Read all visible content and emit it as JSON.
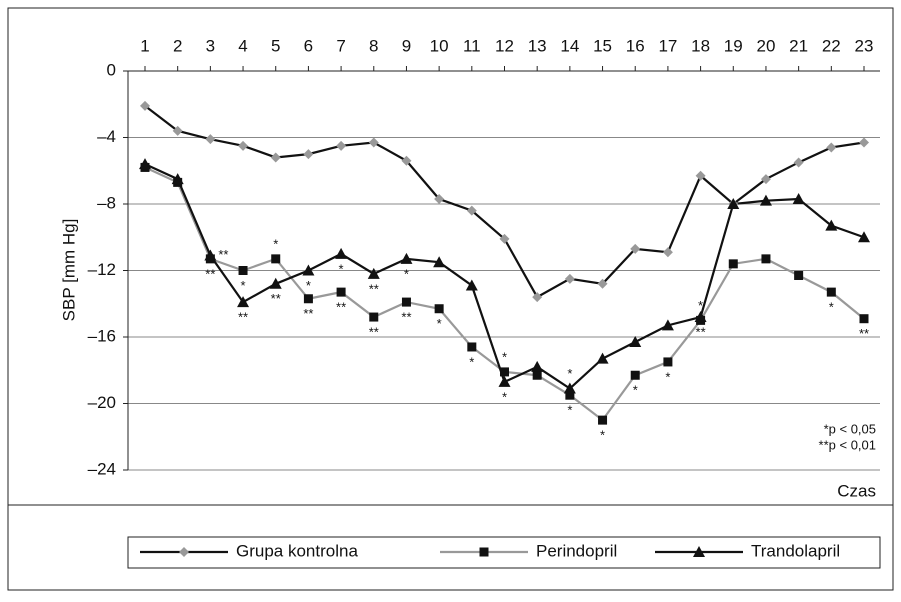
{
  "chart_data": {
    "type": "line",
    "ylabel": "SBP [mm Hg]",
    "xlabel": "Czas",
    "categories": [
      "1",
      "2",
      "3",
      "4",
      "5",
      "6",
      "7",
      "8",
      "9",
      "10",
      "11",
      "12",
      "13",
      "14",
      "15",
      "16",
      "17",
      "18",
      "19",
      "20",
      "21",
      "22",
      "23"
    ],
    "ylim": [
      -24,
      0
    ],
    "yticks": [
      {
        "value": -24,
        "label": "–24"
      },
      {
        "value": -20,
        "label": "–20"
      },
      {
        "value": -16,
        "label": "–16"
      },
      {
        "value": -12,
        "label": "–12"
      },
      {
        "value": -8,
        "label": "–8"
      },
      {
        "value": -4,
        "label": "–4"
      },
      0
    ],
    "grid": true,
    "legend": "bottom",
    "series": [
      {
        "name": "Grupa kontrolna",
        "color": "#111111",
        "marker": "diamond",
        "marker_color": "#999999",
        "values": [
          -2.1,
          -3.6,
          -4.1,
          -4.5,
          -5.2,
          -5.0,
          -4.5,
          -4.3,
          -5.4,
          -7.7,
          -8.4,
          -10.1,
          -13.6,
          -12.5,
          -12.8,
          -10.7,
          -10.9,
          -6.3,
          -8.0,
          -6.5,
          -5.5,
          -4.6,
          -4.3
        ]
      },
      {
        "name": "Perindopril",
        "color": "#999999",
        "marker": "square",
        "marker_color": "#111111",
        "values": [
          -5.8,
          -6.7,
          -11.3,
          -12.0,
          -11.3,
          -13.7,
          -13.3,
          -14.8,
          -13.9,
          -14.3,
          -16.6,
          -18.1,
          -18.3,
          -19.5,
          -21.0,
          -18.3,
          -17.5,
          -15.0,
          -11.6,
          -11.3,
          -12.3,
          -13.3,
          -14.9
        ]
      },
      {
        "name": "Trandolapril",
        "color": "#111111",
        "marker": "triangle",
        "marker_color": "#111111",
        "values": [
          -5.6,
          -6.5,
          -11.1,
          -13.9,
          -12.8,
          -12.0,
          -11.0,
          -12.2,
          -11.3,
          -11.5,
          -12.9,
          -18.7,
          -17.8,
          -19.1,
          -17.3,
          -16.3,
          -15.3,
          -14.8,
          -8.0,
          -7.8,
          -7.7,
          -9.3,
          -10.0
        ]
      }
    ],
    "annotations": [
      {
        "text": "**",
        "series": 2,
        "index": 2,
        "side": "right"
      },
      {
        "text": "**",
        "series": 1,
        "index": 2,
        "side": "below"
      },
      {
        "text": "*",
        "series": 1,
        "index": 3,
        "side": "below"
      },
      {
        "text": "**",
        "series": 2,
        "index": 3,
        "side": "below"
      },
      {
        "text": "*",
        "series": 1,
        "index": 4,
        "side": "above"
      },
      {
        "text": "**",
        "series": 2,
        "index": 4,
        "side": "below"
      },
      {
        "text": "*",
        "series": 2,
        "index": 5,
        "side": "below"
      },
      {
        "text": "**",
        "series": 1,
        "index": 5,
        "side": "below"
      },
      {
        "text": "*",
        "series": 2,
        "index": 6,
        "side": "below"
      },
      {
        "text": "**",
        "series": 1,
        "index": 6,
        "side": "below"
      },
      {
        "text": "**",
        "series": 2,
        "index": 7,
        "side": "below"
      },
      {
        "text": "**",
        "series": 1,
        "index": 7,
        "side": "below"
      },
      {
        "text": "*",
        "series": 2,
        "index": 8,
        "side": "below"
      },
      {
        "text": "**",
        "series": 1,
        "index": 8,
        "side": "below"
      },
      {
        "text": "*",
        "series": 1,
        "index": 9,
        "side": "below"
      },
      {
        "text": "*",
        "series": 1,
        "index": 10,
        "side": "below"
      },
      {
        "text": "*",
        "series": 1,
        "index": 11,
        "side": "above"
      },
      {
        "text": "*",
        "series": 2,
        "index": 11,
        "side": "below"
      },
      {
        "text": "*",
        "series": 2,
        "index": 13,
        "side": "above"
      },
      {
        "text": "*",
        "series": 1,
        "index": 13,
        "side": "below"
      },
      {
        "text": "*",
        "series": 1,
        "index": 14,
        "side": "below"
      },
      {
        "text": "*",
        "series": 1,
        "index": 15,
        "side": "below"
      },
      {
        "text": "*",
        "series": 1,
        "index": 16,
        "side": "below"
      },
      {
        "text": "*",
        "series": 1,
        "index": 17,
        "side": "above"
      },
      {
        "text": "**",
        "series": 2,
        "index": 17,
        "side": "below"
      },
      {
        "text": "*",
        "series": 1,
        "index": 21,
        "side": "below"
      },
      {
        "text": "**",
        "series": 1,
        "index": 22,
        "side": "below"
      }
    ],
    "notes": [
      "*p < 0,05",
      "**p < 0,01"
    ]
  }
}
